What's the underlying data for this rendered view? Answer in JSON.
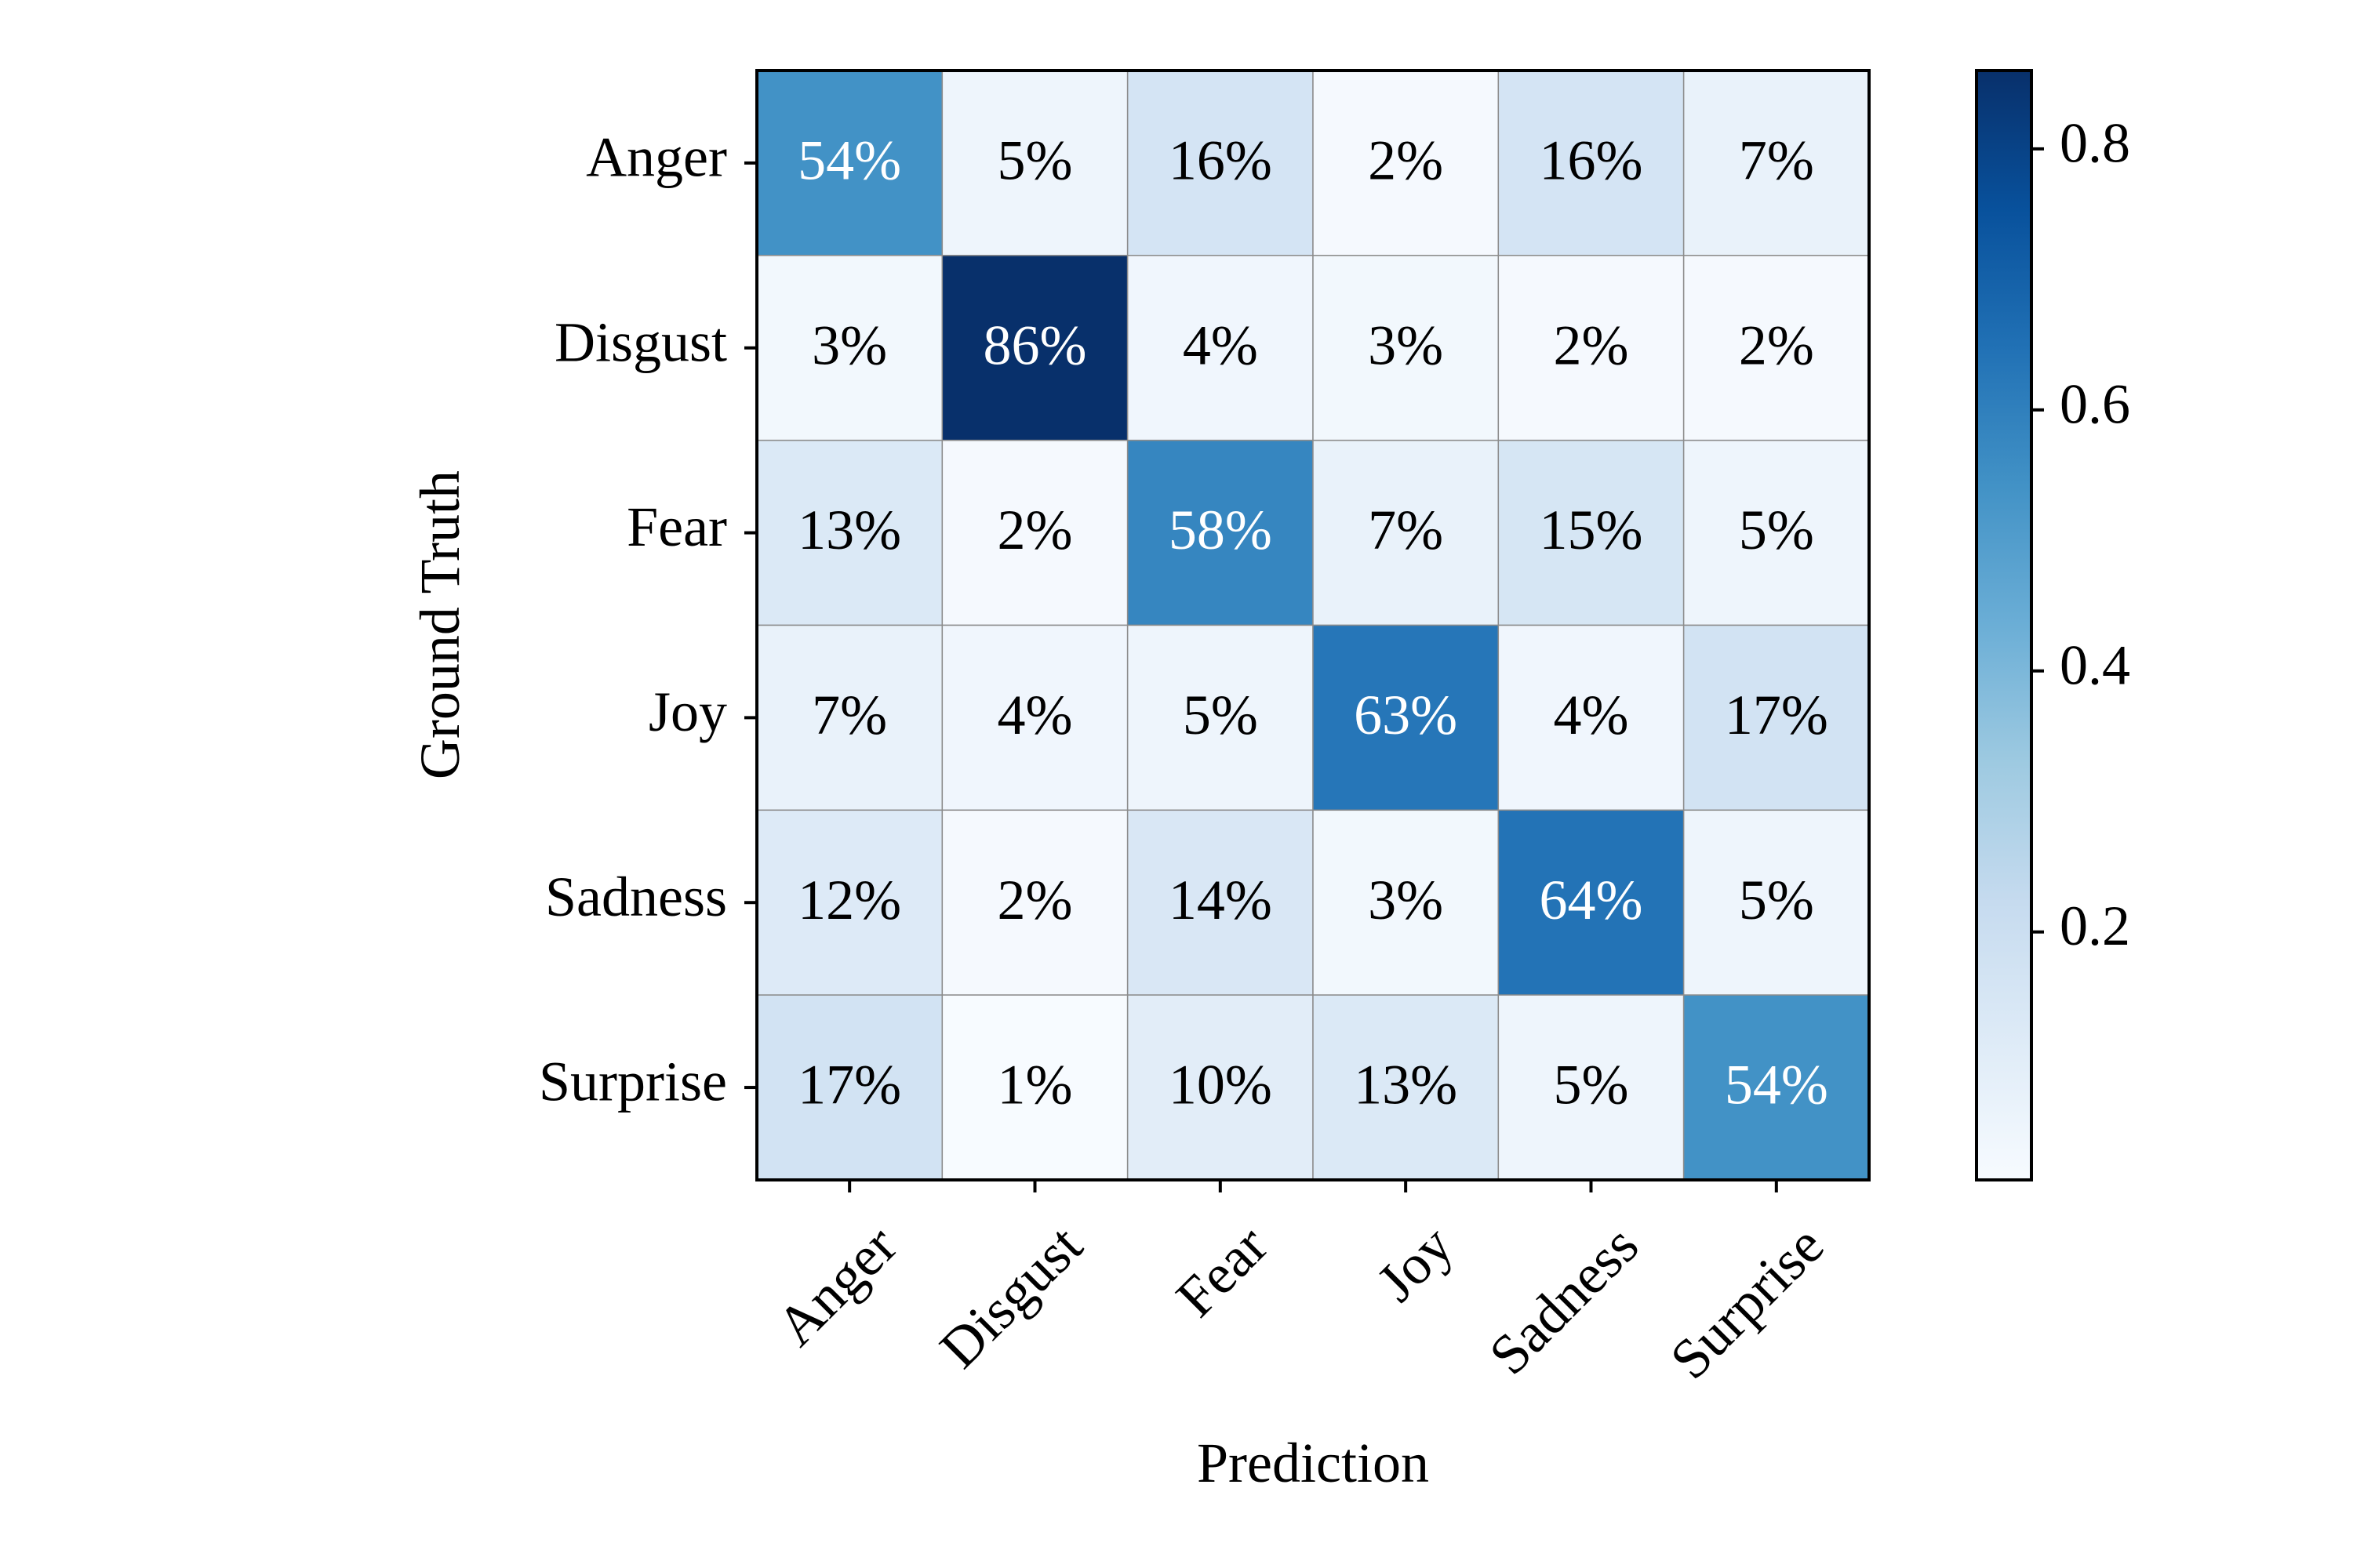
{
  "chart_data": {
    "type": "heatmap",
    "title": "",
    "xlabel": "Prediction",
    "ylabel": "Ground Truth",
    "x_categories": [
      "Anger",
      "Disgust",
      "Fear",
      "Joy",
      "Sadness",
      "Surprise"
    ],
    "y_categories": [
      "Anger",
      "Disgust",
      "Fear",
      "Joy",
      "Sadness",
      "Surprise"
    ],
    "values": [
      [
        0.54,
        0.05,
        0.16,
        0.02,
        0.16,
        0.07
      ],
      [
        0.03,
        0.86,
        0.04,
        0.03,
        0.02,
        0.02
      ],
      [
        0.13,
        0.02,
        0.58,
        0.07,
        0.15,
        0.05
      ],
      [
        0.07,
        0.04,
        0.05,
        0.63,
        0.04,
        0.17
      ],
      [
        0.12,
        0.02,
        0.14,
        0.03,
        0.64,
        0.05
      ],
      [
        0.17,
        0.01,
        0.1,
        0.13,
        0.05,
        0.54
      ]
    ],
    "cell_labels": [
      [
        "54%",
        "5%",
        "16%",
        "2%",
        "16%",
        "7%"
      ],
      [
        "3%",
        "86%",
        "4%",
        "3%",
        "2%",
        "2%"
      ],
      [
        "13%",
        "2%",
        "58%",
        "7%",
        "15%",
        "5%"
      ],
      [
        "7%",
        "4%",
        "5%",
        "63%",
        "4%",
        "17%"
      ],
      [
        "12%",
        "2%",
        "14%",
        "3%",
        "64%",
        "5%"
      ],
      [
        "17%",
        "1%",
        "10%",
        "13%",
        "5%",
        "54%"
      ]
    ],
    "colorscale": "Blues",
    "colorbar": {
      "range": [
        0.01,
        0.86
      ],
      "ticks": [
        0.2,
        0.4,
        0.6,
        0.8
      ],
      "tick_labels": [
        "0.2",
        "0.4",
        "0.6",
        "0.8"
      ]
    },
    "colors": {
      "scale_low": "#f7fbff",
      "scale_high": "#08306b",
      "light_text": "#ffffff",
      "dark_text": "#000000"
    }
  }
}
